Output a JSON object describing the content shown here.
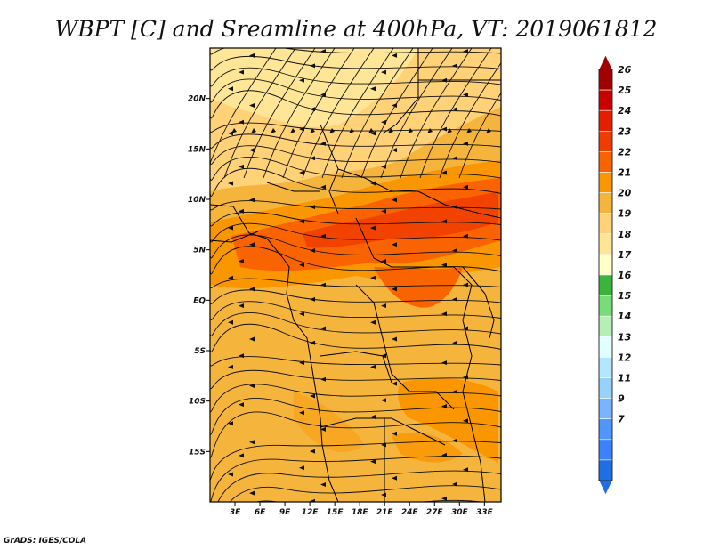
{
  "title": "WBPT [C] and Sreamline at 400hPa, VT: 2019061812",
  "credit": "GrADS: IGES/COLA",
  "map": {
    "projection": "lat-lon",
    "lon_range": [
      0,
      35
    ],
    "lat_range": [
      -20,
      25
    ],
    "lat_ticks": [
      {
        "value": 20,
        "label": "20N"
      },
      {
        "value": 15,
        "label": "15N"
      },
      {
        "value": 10,
        "label": "10N"
      },
      {
        "value": 5,
        "label": "5N"
      },
      {
        "value": 0,
        "label": "EQ"
      },
      {
        "value": -5,
        "label": "5S"
      },
      {
        "value": -10,
        "label": "10S"
      },
      {
        "value": -15,
        "label": "15S"
      }
    ],
    "lon_ticks": [
      {
        "value": 3,
        "label": "3E"
      },
      {
        "value": 6,
        "label": "6E"
      },
      {
        "value": 9,
        "label": "9E"
      },
      {
        "value": 12,
        "label": "12E"
      },
      {
        "value": 15,
        "label": "15E"
      },
      {
        "value": 18,
        "label": "18E"
      },
      {
        "value": 21,
        "label": "21E"
      },
      {
        "value": 24,
        "label": "24E"
      },
      {
        "value": 27,
        "label": "27E"
      },
      {
        "value": 30,
        "label": "30E"
      },
      {
        "value": 33,
        "label": "33E"
      }
    ]
  },
  "colorbar": {
    "levels": [
      {
        "label": "26",
        "color": "#a00000"
      },
      {
        "label": "25",
        "color": "#c80000"
      },
      {
        "label": "24",
        "color": "#e61e00"
      },
      {
        "label": "23",
        "color": "#f03c00"
      },
      {
        "label": "22",
        "color": "#fa6400"
      },
      {
        "label": "21",
        "color": "#fa9600"
      },
      {
        "label": "20",
        "color": "#f5b43c"
      },
      {
        "label": "19",
        "color": "#ffd278"
      },
      {
        "label": "18",
        "color": "#ffe696"
      },
      {
        "label": "17",
        "color": "#ffffc8"
      },
      {
        "label": "16",
        "color": "#3cb43c"
      },
      {
        "label": "15",
        "color": "#78dc78"
      },
      {
        "label": "14",
        "color": "#b4f0b4"
      },
      {
        "label": "13",
        "color": "#e1ffff"
      },
      {
        "label": "12",
        "color": "#b4e6ff"
      },
      {
        "label": "11",
        "color": "#96d2fa"
      },
      {
        "label": "9",
        "color": "#78b4ff"
      },
      {
        "label": "7",
        "color": "#5096ff"
      },
      {
        "label": "",
        "color": "#3c82ff"
      },
      {
        "label": "",
        "color": "#1e6ee6"
      }
    ]
  }
}
